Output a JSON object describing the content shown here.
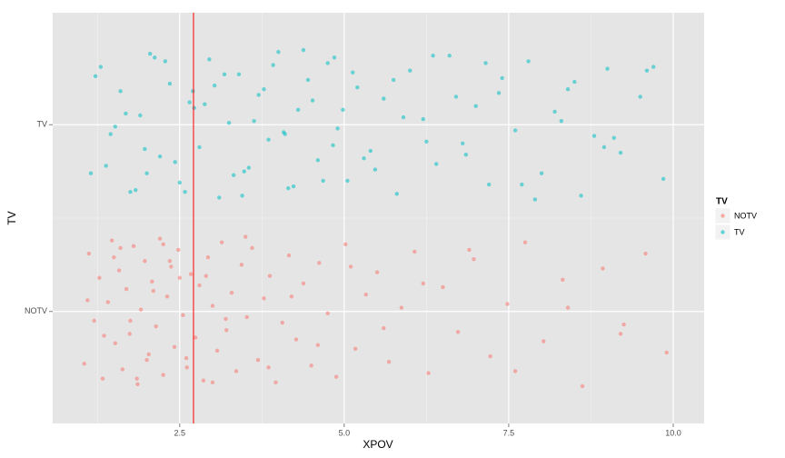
{
  "chart_data": {
    "type": "scatter",
    "x_label": "XPOV",
    "y_label": "TV",
    "xlim": [
      0.57,
      10.47
    ],
    "ylim": [
      0.4,
      2.6
    ],
    "xticks": [
      2.5,
      {
        "value": 5,
        "label": "5.0"
      },
      7.5,
      {
        "value": 10,
        "label": "10.0"
      }
    ],
    "yticks": [
      {
        "value": 1,
        "label": "NOTV"
      },
      {
        "value": 2,
        "label": "TV"
      }
    ],
    "minor_xticks": [
      1.25,
      3.75,
      6.25,
      8.75
    ],
    "minor_yticks": [
      1.5
    ],
    "grid": true,
    "legend_title": "TV",
    "legend": "right",
    "vline": {
      "x": 2.71,
      "color": "#ff0000"
    },
    "series": [
      {
        "name": "NOTV",
        "color": "#F8766D",
        "x": [
          1.05,
          1.12,
          1.2,
          1.28,
          1.33,
          1.41,
          1.47,
          1.52,
          1.58,
          1.63,
          1.69,
          1.74,
          1.8,
          1.86,
          1.91,
          1.97,
          2.03,
          2.08,
          2.14,
          2.2,
          2.25,
          2.31,
          2.37,
          2.42,
          2.48,
          2.55,
          2.61,
          2.67,
          2.74,
          2.8,
          2.86,
          2.93,
          3.0,
          3.07,
          3.14,
          3.21,
          3.29,
          3.36,
          3.44,
          3.52,
          3.6,
          3.69,
          3.78,
          3.87,
          3.96,
          4.06,
          4.16,
          4.27,
          4.38,
          4.5,
          4.62,
          4.75,
          4.88,
          5.02,
          5.17,
          5.33,
          5.5,
          5.68,
          5.87,
          6.07,
          6.28,
          6.5,
          6.73,
          6.97,
          7.22,
          7.48,
          7.75,
          8.03,
          8.32,
          8.62,
          8.93,
          9.25,
          9.58,
          9.9,
          1.1,
          1.35,
          1.6,
          1.85,
          2.1,
          2.35,
          2.6,
          2.9,
          3.2,
          3.5,
          3.85,
          4.2,
          4.6,
          5.1,
          5.6,
          6.2,
          6.9,
          7.6,
          8.4,
          9.2,
          1.5,
          2.0,
          2.5,
          3.0,
          1.75,
          2.25
        ],
        "values": [
          0.72,
          1.31,
          0.95,
          1.18,
          0.64,
          1.05,
          1.38,
          0.83,
          1.22,
          0.69,
          1.12,
          0.88,
          1.35,
          0.61,
          1.01,
          1.27,
          0.77,
          1.16,
          0.92,
          1.39,
          0.66,
          1.08,
          1.24,
          0.81,
          1.33,
          0.98,
          0.7,
          1.2,
          0.86,
          1.14,
          0.63,
          1.29,
          1.03,
          0.79,
          1.37,
          0.9,
          1.1,
          0.68,
          1.25,
          0.97,
          1.34,
          0.74,
          1.07,
          1.19,
          0.62,
          0.94,
          1.3,
          0.85,
          1.15,
          0.71,
          1.26,
          0.99,
          0.65,
          1.36,
          0.8,
          1.09,
          1.21,
          0.73,
          1.02,
          1.32,
          0.67,
          1.13,
          0.89,
          1.28,
          0.76,
          1.04,
          1.37,
          0.84,
          1.17,
          0.6,
          1.23,
          0.93,
          1.31,
          0.78,
          1.06,
          0.87,
          1.34,
          0.64,
          1.11,
          1.27,
          0.75,
          1.19,
          0.96,
          1.4,
          0.7,
          1.08,
          0.82,
          1.24,
          0.91,
          1.15,
          1.33,
          0.68,
          1.02,
          0.88,
          1.29,
          0.74,
          1.18,
          0.62,
          0.95,
          1.36
        ]
      },
      {
        "name": "TV",
        "color": "#00BFC4",
        "x": [
          1.15,
          1.3,
          1.45,
          1.6,
          1.75,
          1.9,
          2.05,
          2.2,
          2.35,
          2.5,
          2.65,
          2.8,
          2.95,
          3.1,
          3.25,
          3.4,
          3.55,
          3.7,
          3.85,
          4.0,
          4.15,
          4.3,
          4.45,
          4.6,
          4.75,
          4.9,
          5.05,
          5.2,
          5.4,
          5.6,
          5.8,
          6.0,
          6.2,
          6.4,
          6.6,
          6.8,
          7.0,
          7.2,
          7.4,
          7.6,
          7.8,
          8.0,
          8.2,
          8.4,
          8.6,
          8.8,
          9.0,
          9.2,
          9.5,
          9.85,
          1.22,
          1.52,
          1.83,
          2.12,
          2.43,
          2.72,
          3.03,
          3.32,
          3.63,
          3.92,
          4.23,
          4.52,
          4.83,
          5.13,
          5.47,
          5.9,
          6.35,
          6.85,
          7.35,
          7.9,
          8.5,
          9.1,
          9.7,
          1.38,
          1.68,
          1.97,
          2.28,
          2.58,
          2.88,
          3.18,
          3.48,
          3.78,
          4.08,
          4.38,
          4.68,
          4.98,
          5.3,
          5.75,
          6.25,
          6.7,
          7.15,
          7.7,
          8.3,
          8.95,
          9.6,
          2.0,
          2.7,
          3.45,
          4.1,
          4.85
        ],
        "values": [
          1.74,
          2.31,
          1.95,
          2.18,
          1.64,
          2.05,
          2.38,
          1.83,
          2.22,
          1.69,
          2.12,
          1.88,
          2.35,
          1.61,
          2.01,
          2.27,
          1.77,
          2.16,
          1.92,
          2.39,
          1.66,
          2.08,
          2.24,
          1.81,
          2.33,
          1.98,
          1.7,
          2.2,
          1.86,
          2.14,
          1.63,
          2.29,
          2.03,
          1.79,
          2.37,
          1.9,
          2.1,
          1.68,
          2.25,
          1.97,
          2.34,
          1.74,
          2.07,
          2.19,
          1.62,
          1.94,
          2.3,
          1.85,
          2.15,
          1.71,
          2.26,
          1.99,
          1.65,
          2.36,
          1.8,
          2.09,
          2.21,
          1.73,
          2.02,
          2.32,
          1.67,
          2.13,
          1.89,
          2.28,
          1.76,
          2.04,
          2.37,
          1.84,
          2.17,
          1.6,
          2.23,
          1.93,
          2.31,
          1.78,
          2.06,
          1.87,
          2.34,
          1.64,
          2.11,
          2.27,
          1.75,
          2.19,
          1.96,
          2.4,
          1.7,
          2.08,
          1.82,
          2.24,
          1.91,
          2.15,
          2.33,
          1.68,
          2.02,
          1.88,
          2.29,
          1.74,
          2.18,
          1.62,
          1.95,
          2.36
        ]
      }
    ]
  }
}
